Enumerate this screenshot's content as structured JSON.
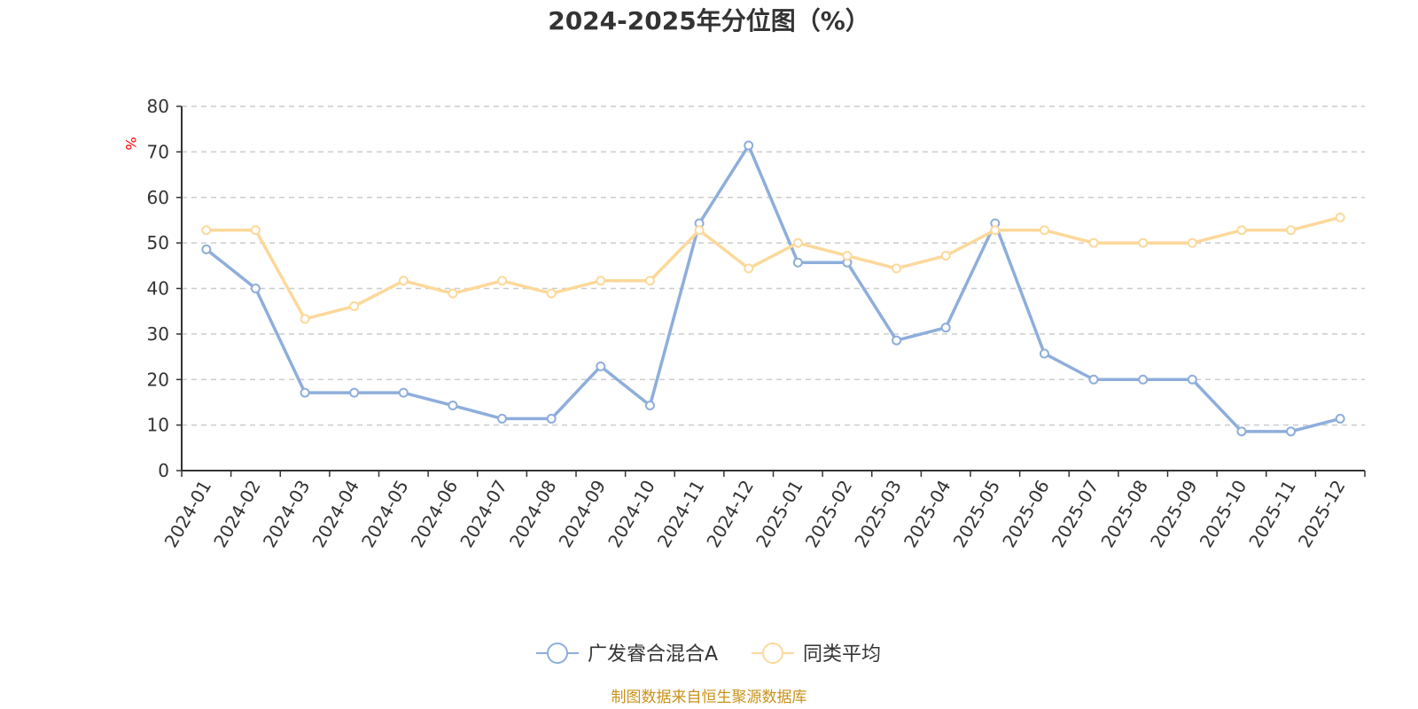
{
  "chart_data": {
    "type": "line",
    "title": "2024-2025年分位图（%）",
    "ylabel": "%",
    "ylim": [
      0,
      80
    ],
    "yticks": [
      0,
      10,
      20,
      30,
      40,
      50,
      60,
      70,
      80
    ],
    "grid": true,
    "legend_position": "bottom",
    "categories": [
      "2024-01",
      "2024-02",
      "2024-03",
      "2024-04",
      "2024-05",
      "2024-06",
      "2024-07",
      "2024-08",
      "2024-09",
      "2024-10",
      "2024-11",
      "2024-12",
      "2025-01",
      "2025-02",
      "2025-03",
      "2025-04",
      "2025-05",
      "2025-06",
      "2025-07",
      "2025-08",
      "2025-09",
      "2025-10",
      "2025-11",
      "2025-12"
    ],
    "series": [
      {
        "name": "广发睿合混合A",
        "color": "#8eaedb",
        "values": [
          48.6,
          40.0,
          17.1,
          17.1,
          17.1,
          14.3,
          11.4,
          11.4,
          22.9,
          14.3,
          54.3,
          71.4,
          45.7,
          45.7,
          28.6,
          31.4,
          54.3,
          25.7,
          20.0,
          20.0,
          20.0,
          8.6,
          8.6,
          11.4
        ]
      },
      {
        "name": "同类平均",
        "color": "#fcd89a",
        "values": [
          52.8,
          52.8,
          33.3,
          36.1,
          41.7,
          38.9,
          41.7,
          38.9,
          41.7,
          41.7,
          52.8,
          44.4,
          50.0,
          47.2,
          44.4,
          47.2,
          52.8,
          52.8,
          50.0,
          50.0,
          50.0,
          52.8,
          52.8,
          55.6
        ]
      }
    ],
    "source": "制图数据来自恒生聚源数据库"
  }
}
